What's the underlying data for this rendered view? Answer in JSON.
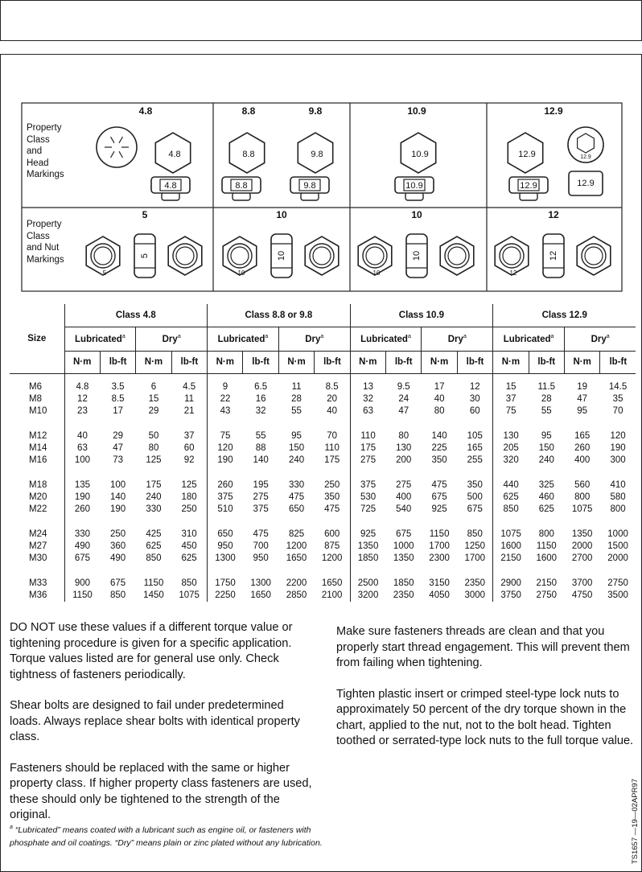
{
  "markings": {
    "head_row_label": "Property Class and Head Markings",
    "nut_row_label": "Property Class and Nut Markings",
    "head": [
      {
        "headings": [
          "4.8"
        ],
        "marks": [
          "4.8",
          "4.8"
        ]
      },
      {
        "headings": [
          "8.8",
          "9.8"
        ],
        "marks": [
          "8.8",
          "9.8",
          "8.8",
          "9.8"
        ]
      },
      {
        "headings": [
          "10.9"
        ],
        "marks": [
          "10.9",
          "10.9"
        ]
      },
      {
        "headings": [
          "12.9"
        ],
        "marks": [
          "12.9",
          "12.9",
          "12.9",
          "12.9"
        ]
      }
    ],
    "nut": [
      {
        "heading": "5",
        "marks": [
          "5",
          "5"
        ]
      },
      {
        "heading": "10",
        "marks": [
          "10",
          "10"
        ]
      },
      {
        "heading": "10",
        "marks": [
          "10",
          "10"
        ]
      },
      {
        "heading": "12",
        "marks": [
          "12",
          "12"
        ]
      }
    ]
  },
  "torque_table": {
    "size_header": "Size",
    "classes": [
      "Class 4.8",
      "Class 8.8 or 9.8",
      "Class 10.9",
      "Class 12.9"
    ],
    "conditions": [
      "Lubricated",
      "Dry"
    ],
    "condition_mark": "a",
    "units": [
      "N·m",
      "lb-ft"
    ],
    "groups": [
      [
        {
          "size": "M6",
          "values": [
            "4.8",
            "3.5",
            "6",
            "4.5",
            "9",
            "6.5",
            "11",
            "8.5",
            "13",
            "9.5",
            "17",
            "12",
            "15",
            "11.5",
            "19",
            "14.5"
          ]
        },
        {
          "size": "M8",
          "values": [
            "12",
            "8.5",
            "15",
            "11",
            "22",
            "16",
            "28",
            "20",
            "32",
            "24",
            "40",
            "30",
            "37",
            "28",
            "47",
            "35"
          ]
        },
        {
          "size": "M10",
          "values": [
            "23",
            "17",
            "29",
            "21",
            "43",
            "32",
            "55",
            "40",
            "63",
            "47",
            "80",
            "60",
            "75",
            "55",
            "95",
            "70"
          ]
        }
      ],
      [
        {
          "size": "M12",
          "values": [
            "40",
            "29",
            "50",
            "37",
            "75",
            "55",
            "95",
            "70",
            "110",
            "80",
            "140",
            "105",
            "130",
            "95",
            "165",
            "120"
          ]
        },
        {
          "size": "M14",
          "values": [
            "63",
            "47",
            "80",
            "60",
            "120",
            "88",
            "150",
            "110",
            "175",
            "130",
            "225",
            "165",
            "205",
            "150",
            "260",
            "190"
          ]
        },
        {
          "size": "M16",
          "values": [
            "100",
            "73",
            "125",
            "92",
            "190",
            "140",
            "240",
            "175",
            "275",
            "200",
            "350",
            "255",
            "320",
            "240",
            "400",
            "300"
          ]
        }
      ],
      [
        {
          "size": "M18",
          "values": [
            "135",
            "100",
            "175",
            "125",
            "260",
            "195",
            "330",
            "250",
            "375",
            "275",
            "475",
            "350",
            "440",
            "325",
            "560",
            "410"
          ]
        },
        {
          "size": "M20",
          "values": [
            "190",
            "140",
            "240",
            "180",
            "375",
            "275",
            "475",
            "350",
            "530",
            "400",
            "675",
            "500",
            "625",
            "460",
            "800",
            "580"
          ]
        },
        {
          "size": "M22",
          "values": [
            "260",
            "190",
            "330",
            "250",
            "510",
            "375",
            "650",
            "475",
            "725",
            "540",
            "925",
            "675",
            "850",
            "625",
            "1075",
            "800"
          ]
        }
      ],
      [
        {
          "size": "M24",
          "values": [
            "330",
            "250",
            "425",
            "310",
            "650",
            "475",
            "825",
            "600",
            "925",
            "675",
            "1150",
            "850",
            "1075",
            "800",
            "1350",
            "1000"
          ]
        },
        {
          "size": "M27",
          "values": [
            "490",
            "360",
            "625",
            "450",
            "950",
            "700",
            "1200",
            "875",
            "1350",
            "1000",
            "1700",
            "1250",
            "1600",
            "1150",
            "2000",
            "1500"
          ]
        },
        {
          "size": "M30",
          "values": [
            "675",
            "490",
            "850",
            "625",
            "1300",
            "950",
            "1650",
            "1200",
            "1850",
            "1350",
            "2300",
            "1700",
            "2150",
            "1600",
            "2700",
            "2000"
          ]
        }
      ],
      [
        {
          "size": "M33",
          "values": [
            "900",
            "675",
            "1150",
            "850",
            "1750",
            "1300",
            "2200",
            "1650",
            "2500",
            "1850",
            "3150",
            "2350",
            "2900",
            "2150",
            "3700",
            "2750"
          ]
        },
        {
          "size": "M36",
          "values": [
            "1150",
            "850",
            "1450",
            "1075",
            "2250",
            "1650",
            "2850",
            "2100",
            "3200",
            "2350",
            "4050",
            "3000",
            "3750",
            "2750",
            "4750",
            "3500"
          ]
        }
      ]
    ]
  },
  "notes": {
    "left": [
      "DO NOT use these values if a different torque value or tightening procedure is given for a specific application. Torque values listed are for general use only. Check tightness of fasteners periodically.",
      "Shear bolts are designed to fail under predetermined loads. Always replace shear bolts with identical property class.",
      "Fasteners should be replaced with the same or higher property class. If higher property class fasteners are used, these should only be tightened to the strength of the original."
    ],
    "right": [
      "Make sure fasteners threads are clean and that you properly start thread engagement. This will prevent them from failing when tightening.",
      "Tighten plastic insert or crimped steel-type lock nuts to approximately 50 percent of the dry torque shown in the chart, applied to the nut, not to the bolt head. Tighten toothed or serrated-type lock nuts to the full torque value."
    ]
  },
  "footnote": {
    "mark": "a",
    "text": "“Lubricated” means coated with a lubricant such as engine oil, or fasteners with phosphate and oil coatings. “Dry” means plain or zinc plated without any lubrication."
  },
  "stamp": "TS1657 —19—02APR97"
}
